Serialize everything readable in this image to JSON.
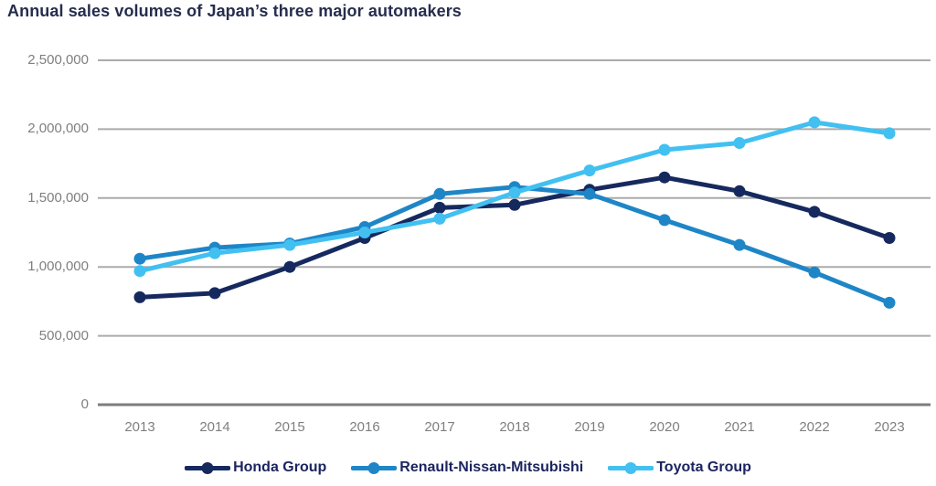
{
  "title": "Annual sales volumes of Japan’s three major automakers",
  "chart_data": {
    "type": "line",
    "categories": [
      "2013",
      "2014",
      "2015",
      "2016",
      "2017",
      "2018",
      "2019",
      "2020",
      "2021",
      "2022",
      "2023"
    ],
    "series": [
      {
        "name": "Honda Group",
        "color": "#16295f",
        "values": [
          780000,
          810000,
          1000000,
          1210000,
          1430000,
          1450000,
          1560000,
          1650000,
          1550000,
          1400000,
          1210000
        ]
      },
      {
        "name": "Renault-Nissan-Mitsubishi",
        "color": "#1e86c7",
        "values": [
          1060000,
          1140000,
          1170000,
          1290000,
          1530000,
          1580000,
          1530000,
          1340000,
          1160000,
          960000,
          740000
        ]
      },
      {
        "name": "Toyota Group",
        "color": "#41c0f1",
        "values": [
          970000,
          1100000,
          1160000,
          1250000,
          1350000,
          1540000,
          1700000,
          1850000,
          1900000,
          2050000,
          1970000
        ]
      }
    ],
    "ylim": [
      0,
      2500000
    ],
    "ytick_interval": 500000,
    "ytick_labels": [
      "0",
      "500,000",
      "1,000,000",
      "1,500,000",
      "2,000,000",
      "2,500,000"
    ],
    "xlabel": "",
    "ylabel": "",
    "grid": "horizontal",
    "legend_position": "bottom"
  },
  "colors": {
    "title_text": "#262d4d",
    "legend_text": "#1c2560",
    "axis_text": "#7f7f7f",
    "gridline": "#ababab",
    "baseline": "#7d7d7d",
    "background": "#ffffff"
  }
}
